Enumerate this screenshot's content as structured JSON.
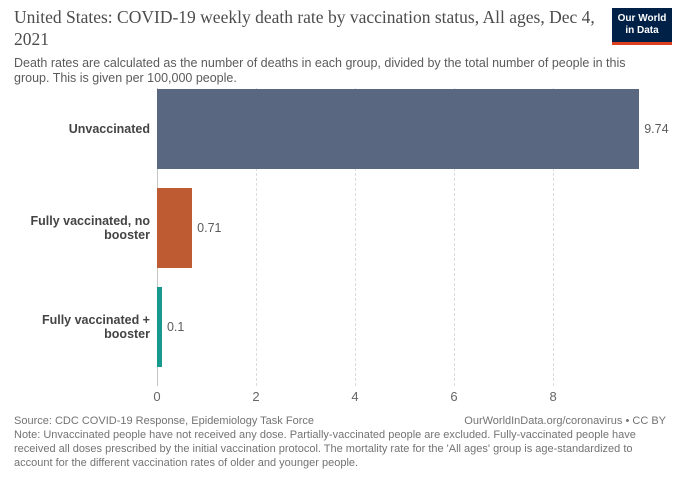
{
  "header": {
    "title": "United States: COVID-19 weekly death rate by vaccination status, All ages, Dec 4, 2021",
    "subtitle": "Death rates are calculated as the number of deaths in each group, divided by the total number of people in this group. This is given per 100,000 people.",
    "logo_line1": "Our World",
    "logo_line2": "in Data",
    "logo_bg_color": "#002147",
    "logo_stripe_color": "#dc4020"
  },
  "chart_data": {
    "type": "bar",
    "orientation": "horizontal",
    "title": "United States: COVID-19 weekly death rate by vaccination status, All ages, Dec 4, 2021",
    "categories": [
      "Unvaccinated",
      "Fully vaccinated, no booster",
      "Fully vaccinated + booster"
    ],
    "values": [
      9.74,
      0.71,
      0.1
    ],
    "value_labels": [
      "9.74",
      "0.71",
      "0.1"
    ],
    "colors": [
      "#596880",
      "#bf5b32",
      "#18998f"
    ],
    "xlim": [
      0,
      10.16
    ],
    "xticks": [
      0,
      2,
      4,
      6,
      8
    ],
    "xtick_labels": [
      "0",
      "2",
      "4",
      "6",
      "8"
    ],
    "xlabel": "",
    "ylabel": "",
    "grid": "vertical-dashed",
    "legend": "none"
  },
  "footer": {
    "source": "Source: CDC COVID-19 Response, Epidemiology Task Force",
    "attribution": "OurWorldInData.org/coronavirus • CC BY",
    "note": "Note: Unvaccinated people have not received any dose. Partially-vaccinated people are excluded. Fully-vaccinated people have received all doses prescribed by the initial vaccination protocol. The mortality rate for the 'All ages' group is age-standardized to account for the different vaccination rates of older and younger people."
  }
}
